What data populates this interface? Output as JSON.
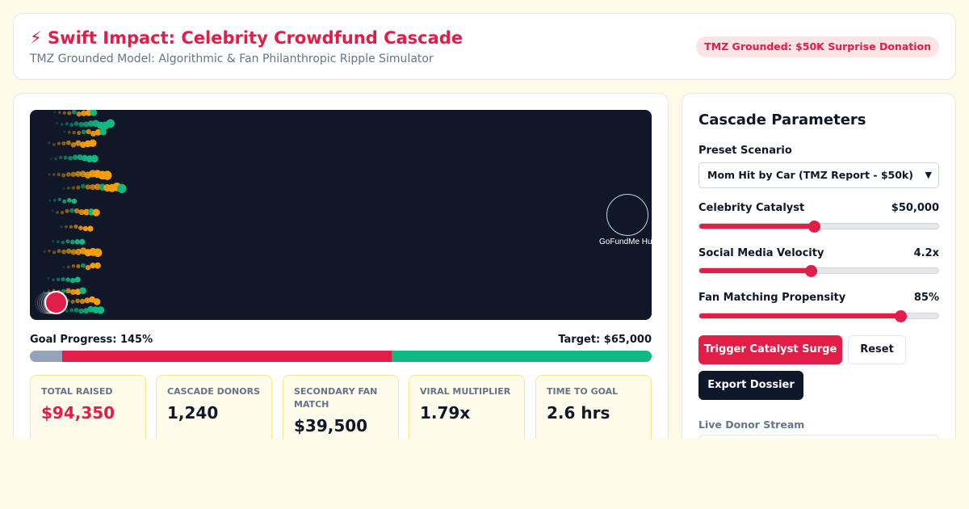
{
  "header": {
    "title": "⚡ Swift Impact: Celebrity Crowdfund Cascade",
    "subtitle": "TMZ Grounded Model: Algorithmic & Fan Philanthropic Ripple Simulator",
    "badge": "TMZ Grounded: $50K Surprise Donation"
  },
  "simulation": {
    "hub_label": "GoFundMe Hu",
    "colors": {
      "background": "#0f1729",
      "fan": "#f59e0b",
      "algorithmic": "#10b981",
      "catalyst": "#e11d48"
    }
  },
  "progress": {
    "goal_label": "Goal Progress: 145%",
    "target_label": "Target: $65,000",
    "segments": [
      {
        "name": "baseline",
        "fraction": 0.052,
        "color": "#94a3b8"
      },
      {
        "name": "celebrity",
        "fraction": 0.53,
        "color": "#e11d48"
      },
      {
        "name": "fan-match",
        "fraction": 0.418,
        "color": "#10b981"
      }
    ]
  },
  "stats": [
    {
      "label": "TOTAL RAISED",
      "value": "$94,350",
      "color": "#e11d48"
    },
    {
      "label": "CASCADE DONORS",
      "value": "1,240",
      "color": "#0f172a"
    },
    {
      "label": "SECONDARY FAN MATCH",
      "value": "$39,500",
      "color": "#0f172a"
    },
    {
      "label": "VIRAL MULTIPLIER",
      "value": "1.79x",
      "color": "#0f172a"
    },
    {
      "label": "TIME TO GOAL",
      "value": "2.6 hrs",
      "color": "#0f172a"
    }
  ],
  "params": {
    "title": "Cascade Parameters",
    "preset_label": "Preset Scenario",
    "preset_value": "Mom Hit by Car (TMZ Report - $50k)",
    "sliders": [
      {
        "label": "Celebrity Catalyst",
        "value": "$50,000",
        "level": 0.48
      },
      {
        "label": "Social Media Velocity",
        "value": "4.2x",
        "level": 0.465
      },
      {
        "label": "Fan Matching Propensity",
        "value": "85%",
        "level": 0.84
      }
    ],
    "buttons": {
      "trigger": "Trigger Catalyst Surge",
      "reset": "Reset",
      "export": "Export Dossier"
    },
    "stream_label": "Live Donor Stream"
  }
}
